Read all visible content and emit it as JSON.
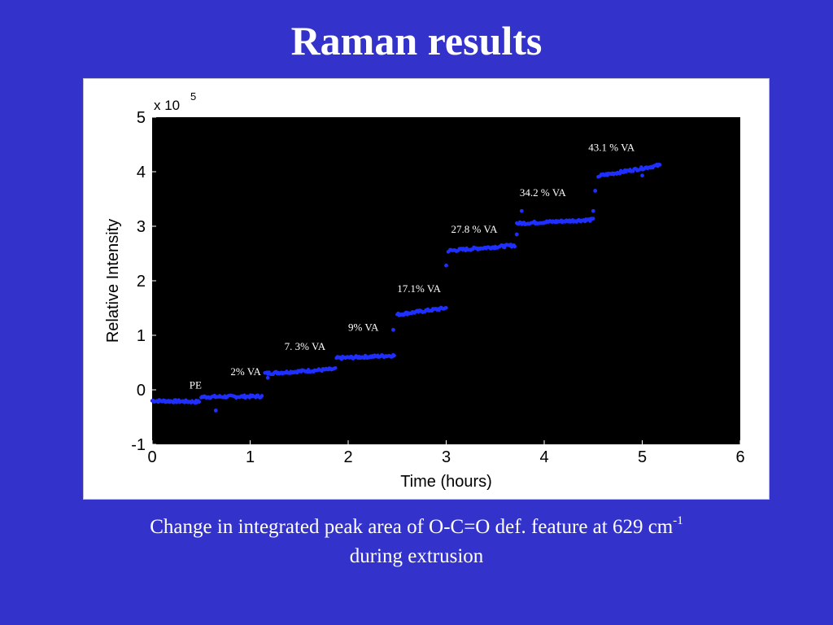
{
  "slide": {
    "title": "Raman results",
    "caption_main": "Change in integrated peak area of O-C=O def. feature at 629 cm",
    "caption_sup": "-1",
    "caption_line2": "during extrusion"
  },
  "colors": {
    "slide_background": "#3333cc",
    "plot_background": "#000000",
    "points": "#1f2fff",
    "annotation_text": "#ffffff"
  },
  "chart_data": {
    "type": "scatter",
    "title": "",
    "xlabel": "Time (hours)",
    "ylabel": "Relative Intensity",
    "y_multiplier_label": "x 10",
    "y_multiplier_exponent": "5",
    "xlim": [
      0,
      6
    ],
    "ylim": [
      -1,
      5
    ],
    "xticks": [
      "0",
      "1",
      "2",
      "3",
      "4",
      "5",
      "6"
    ],
    "yticks": [
      "-1",
      "0",
      "1",
      "2",
      "3",
      "4",
      "5"
    ],
    "grid": false,
    "annotations": [
      {
        "text": "PE",
        "x": 0.38,
        "y": 0.02
      },
      {
        "text": "2% VA",
        "x": 0.8,
        "y": 0.27
      },
      {
        "text": "7. 3% VA",
        "x": 1.35,
        "y": 0.73
      },
      {
        "text": "9% VA",
        "x": 2.0,
        "y": 1.08
      },
      {
        "text": "17.1% VA",
        "x": 2.5,
        "y": 1.79
      },
      {
        "text": "27.8 % VA",
        "x": 3.05,
        "y": 2.88
      },
      {
        "text": "34.2 % VA",
        "x": 3.75,
        "y": 3.55
      },
      {
        "text": "43.1 % VA",
        "x": 4.45,
        "y": 4.38
      }
    ],
    "segments": [
      {
        "x_start": 0.0,
        "x_end": 0.48,
        "y_start": -0.2,
        "y_end": -0.22
      },
      {
        "x_start": 0.5,
        "x_end": 1.12,
        "y_start": -0.13,
        "y_end": -0.12
      },
      {
        "x_start": 1.15,
        "x_end": 1.87,
        "y_start": 0.3,
        "y_end": 0.38
      },
      {
        "x_start": 1.88,
        "x_end": 2.47,
        "y_start": 0.58,
        "y_end": 0.63
      },
      {
        "x_start": 2.5,
        "x_end": 3.0,
        "y_start": 1.38,
        "y_end": 1.5
      },
      {
        "x_start": 3.02,
        "x_end": 3.7,
        "y_start": 2.55,
        "y_end": 2.65
      },
      {
        "x_start": 3.72,
        "x_end": 4.5,
        "y_start": 3.05,
        "y_end": 3.12
      },
      {
        "x_start": 4.55,
        "x_end": 5.18,
        "y_start": 3.92,
        "y_end": 4.12
      }
    ],
    "extra_points": [
      {
        "x": 0.65,
        "y": -0.38
      },
      {
        "x": 1.18,
        "y": 0.22
      },
      {
        "x": 2.46,
        "y": 1.1
      },
      {
        "x": 3.0,
        "y": 2.28
      },
      {
        "x": 3.72,
        "y": 2.85
      },
      {
        "x": 3.77,
        "y": 3.28
      },
      {
        "x": 4.5,
        "y": 3.28
      },
      {
        "x": 4.52,
        "y": 3.65
      },
      {
        "x": 5.0,
        "y": 3.93
      }
    ]
  }
}
